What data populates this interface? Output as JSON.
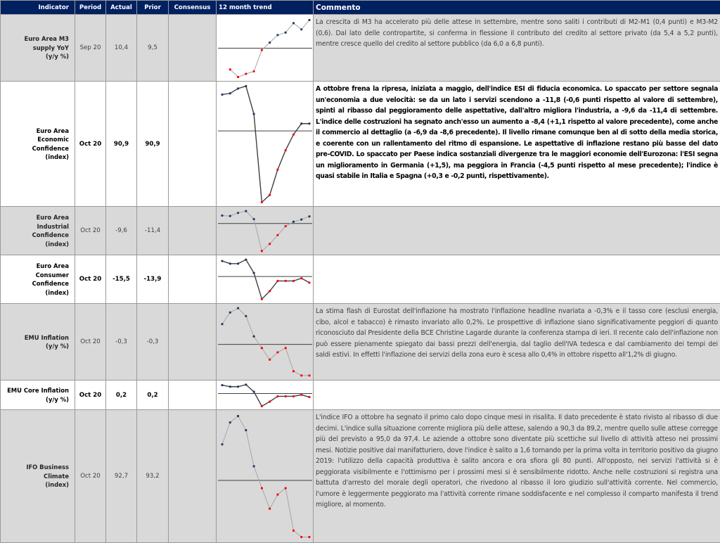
{
  "header": {
    "indicator": "Indicator",
    "period": "Period",
    "actual": "Actual",
    "prior": "Prior",
    "consensus": "Consensus",
    "trend": "12 month trend",
    "comment": "Commento"
  },
  "colors": {
    "header_bg": "#002060",
    "row_gray": "#d9d9d9",
    "point_above": "#1f3864",
    "point_below": "#ff0000",
    "line": "#808080"
  },
  "rows": [
    {
      "indicator": [
        "Euro Area M3",
        "supply YoY",
        "(y/y %)"
      ],
      "period": "Sep 20",
      "actual": "10,4",
      "prior": "9,5",
      "consensus": "",
      "style": "gray",
      "trend": {
        "values": [
          16,
          4,
          9,
          13,
          47,
          59,
          71,
          75,
          90,
          80,
          95
        ],
        "reference": 50
      },
      "comment": " La crescita di M3 ha  accelerato più delle attese in settembre, mentre sono saliti i contributi di M2-M1 (0,4 punti) e M3-M2 (0,6). Dal lato delle contropartite, si conferma in flessione il contributo del credito al settore privato (da 5,4 a 5,2 punti), mentre cresce quello del credito al settore pubblico (da 6,0 a 6,8 punti)."
    },
    {
      "indicator": [
        "Euro Area",
        "Economic",
        "Confidence",
        "(index)"
      ],
      "period": "Oct 20",
      "actual": "90,9",
      "prior": "90,9",
      "consensus": "",
      "style": "white",
      "trend": {
        "values": [
          91,
          92,
          96,
          98,
          75,
          2,
          8,
          29,
          45,
          58,
          67,
          67
        ],
        "reference": 61
      },
      "comment": "A ottobre frena la ripresa, iniziata a maggio, dell'indice ESI di fiducia economica. Lo spaccato per settore segnala un'economia a due velocità: se da un lato i servizi scendono a -11,8 (-0,6 punti rispetto al valore di settembre), spinti al ribasso dal peggioramento delle aspettative, dall'altro migliora l'industria, a -9,6 da -11,4 di settembre. L'indice delle costruzioni ha segnato anch'esso un aumento a -8,4 (+1,1 rispetto al valore precedente), come anche il commercio al dettaglio (a -6,9 da -8,6 precedente). Il livello rimane comunque ben al di sotto della media storica, e coerente con un rallentamento del ritmo di espansione. Le aspettative di inflazione restano più basse del dato pre-COVID. Lo spaccato per Paese indica sostanziali divergenze tra le maggiori economie dell'Eurozona: l'ESI segna un miglioramento in Germania (+1,5), ma peggiora in Francia (-4,5 punti rispetto al mese precedente); l'indice è quasi stabile in Italia e Spagna (+0,3 e -0,2 punti, rispettivamente)."
    },
    {
      "indicator": [
        "Euro Area",
        "Industrial",
        "Confidence",
        "(index)"
      ],
      "period": "Oct 20",
      "actual": "-9,6",
      "prior": "-11,4",
      "consensus": "",
      "style": "gray",
      "trend": {
        "values": [
          85,
          84,
          91,
          95,
          77,
          5,
          21,
          41,
          61,
          71,
          76,
          83
        ],
        "reference": 67
      },
      "comment": ""
    },
    {
      "indicator": [
        "Euro Area",
        "Consumer",
        "Confidence",
        "(index)"
      ],
      "period": "Oct 20",
      "actual": "-15,5",
      "prior": "-13,9",
      "consensus": "",
      "style": "white",
      "trend": {
        "values": [
          92,
          86,
          86,
          95,
          65,
          6,
          24,
          47,
          47,
          47,
          53,
          43
        ],
        "reference": 57
      },
      "comment": ""
    },
    {
      "indicator": [
        "EMU Inflation",
        "(y/y %)"
      ],
      "period": "Oct 20",
      "actual": "-0,3",
      "prior": "-0,3",
      "consensus": "",
      "style": "gray",
      "trend": {
        "values": [
          75,
          91,
          97,
          86,
          58,
          42,
          26,
          36,
          42,
          10,
          4,
          4
        ],
        "reference": 47
      },
      "comment": "La stima flash di Eurostat dell'inflazione ha mostrato  l'inflazione headline  nvariata a -0,3% e il tasso core (esclusi energia, cibo, alcol e tabacco) è rimasto invariato allo 0,2%. Le prospettive di inflazione siano significativamente peggiori di quanto riconosciuto dal Presidente della BCE Christine Lagarde durante la conferenza stampa di ieri. Il recente calo dell'inflazione non può essere pienamente spiegato dai bassi prezzi dell'energia, dal taglio dell'IVA tedesca e dal cambiamento dei tempi dei saldi estivi. In effetti l'inflazione dei servizi della zona euro è scesa allo 0,4% in ottobre rispetto all'1,2% di giugno."
    },
    {
      "indicator": [
        "EMU Core Inflation",
        "(y/y %)"
      ],
      "period": "Oct 20",
      "actual": "0,2",
      "prior": "0,2",
      "consensus": "",
      "style": "white",
      "trend": {
        "values": [
          90,
          84,
          84,
          92,
          64,
          7,
          25,
          46,
          46,
          46,
          52,
          43
        ],
        "reference": 57
      },
      "comment": ""
    },
    {
      "indicator": [
        "IFO Business",
        "Climate",
        "(index)"
      ],
      "period": "Oct 20",
      "actual": "92,7",
      "prior": "93,2",
      "consensus": "",
      "style": "gray",
      "trend": {
        "values": [
          75,
          92,
          97,
          86,
          58,
          41,
          25,
          36,
          41,
          8,
          3,
          3
        ],
        "reference": 47
      },
      "comment": "L'indice IFO a ottobre ha segnato il primo calo dopo cinque mesi in risalita. Il dato precedente è stato rivisto al ribasso di due decimi. L'indice sulla situazione corrente migliora più delle attese, salendo a 90,3 da 89,2, mentre quello sulle attese corregge più del previsto a 95,0 da 97,4. Le aziende a ottobre sono diventate più scettiche sul livello di attività atteso nei prossimi mesi. Notizie positive dal manifatturiero, dove l'indice è salito a 1,6 tornando per la prima volta in territorio positivo da giugno 2019: l'utilizzo della capacità produttiva è salito ancora e ora sfiora gli 80 punti. All'opposto, nei servizi l'attività si è peggiorata visibilmente e l'ottimismo per i prossimi mesi si è sensibilmente ridotto. Anche nelle costruzioni si registra una battuta d'arresto del morale degli operatori, che rivedono al ribasso il loro giudizio sull'attività corrente. Nel commercio, l'umore è leggermente peggiorato ma l'attività corrente rimane soddisfacente e nel complesso il comparto manifesta il trend migliore, al momento."
    }
  ]
}
